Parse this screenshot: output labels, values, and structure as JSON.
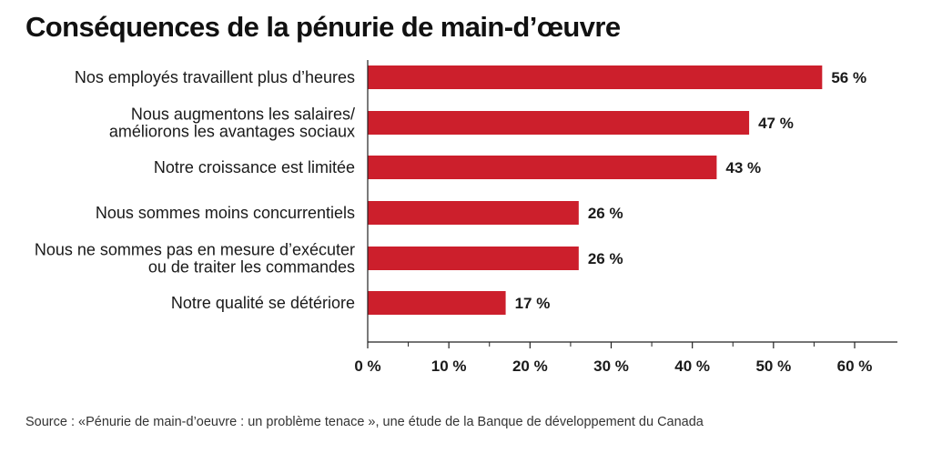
{
  "chart_data": {
    "type": "bar",
    "orientation": "horizontal",
    "title": "Conséquences de la pénurie de main-d’œuvre",
    "categories": [
      [
        "Nos employés travaillent plus d’heures"
      ],
      [
        "Nous augmentons les salaires/",
        "améliorons les avantages sociaux"
      ],
      [
        "Notre croissance est limitée"
      ],
      [
        "Nous sommes moins concurrentiels"
      ],
      [
        "Nous ne sommes pas en mesure d’exécuter",
        "ou de traiter les commandes"
      ],
      [
        "Notre qualité se détériore"
      ]
    ],
    "values": [
      56,
      47,
      43,
      26,
      26,
      17
    ],
    "value_labels": [
      "56 %",
      "47 %",
      "43 %",
      "26 %",
      "26 %",
      "17 %"
    ],
    "xlim": [
      0,
      65
    ],
    "ticks": [
      0,
      10,
      20,
      30,
      40,
      50,
      60
    ],
    "tick_labels": [
      "0 %",
      "10 %",
      "20 %",
      "30 %",
      "40 %",
      "50 %",
      "60 %"
    ],
    "xlabel": "",
    "ylabel": "",
    "grid": false,
    "bar_color": "#cc1f2c"
  },
  "source": "Source : «Pénurie de main-d’oeuvre : un problème tenace », une étude de la Banque de développement du Canada"
}
